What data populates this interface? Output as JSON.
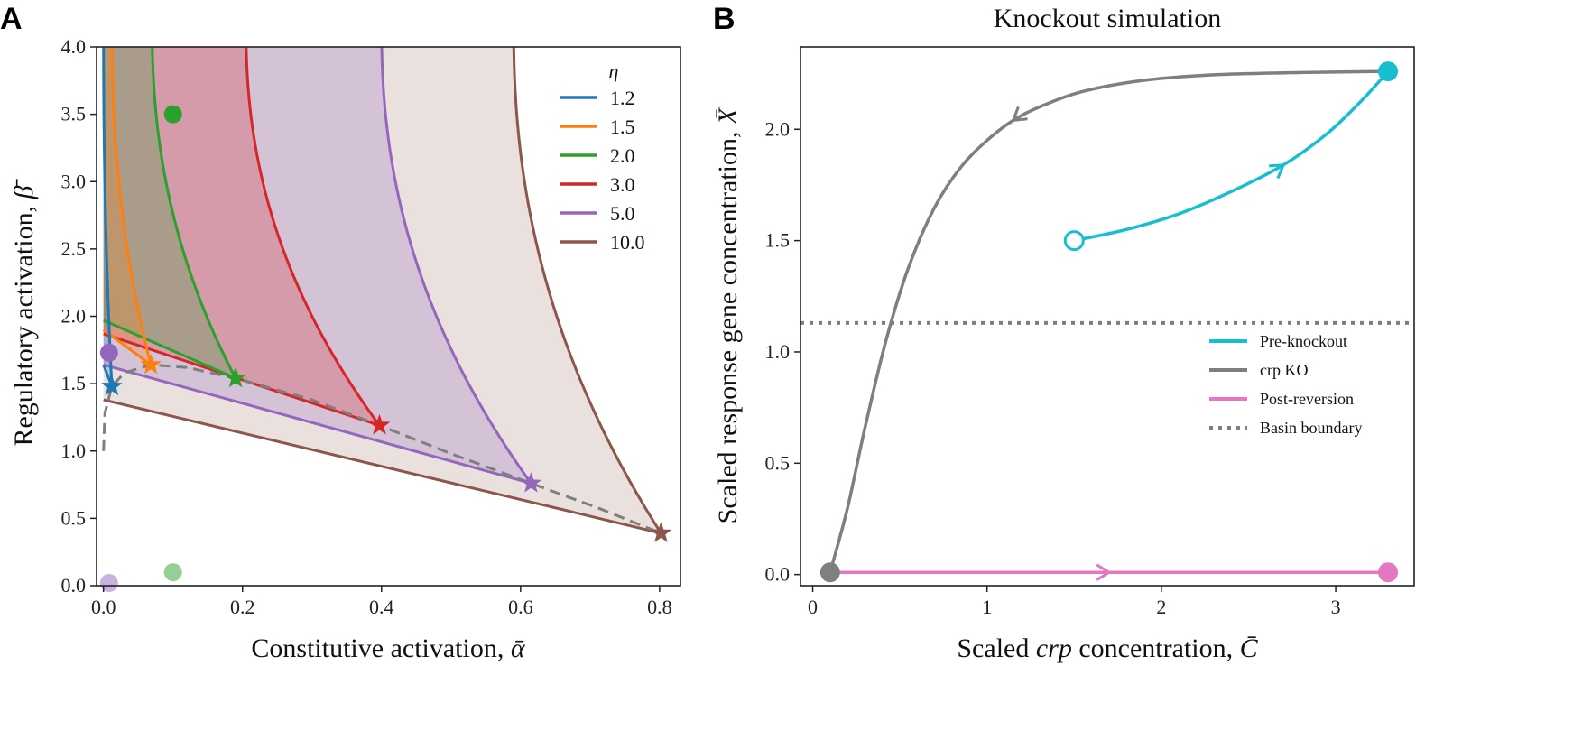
{
  "figure": {
    "panel_a_letter": "A",
    "panel_b_letter": "B"
  },
  "chart_data": [
    {
      "type": "line",
      "panel": "A",
      "title": "",
      "xlabel": "Constitutive activation, ",
      "xlabel_symbol": "ᾱ",
      "ylabel": "Regulatory activation, ",
      "ylabel_symbol": "β̄",
      "xlim": [
        -0.01,
        0.83
      ],
      "ylim": [
        0.0,
        4.0
      ],
      "xticks": [
        0.0,
        0.2,
        0.4,
        0.6,
        0.8
      ],
      "xtick_labels": [
        "0.0",
        "0.2",
        "0.4",
        "0.6",
        "0.8"
      ],
      "yticks": [
        0.0,
        0.5,
        1.0,
        1.5,
        2.0,
        2.5,
        3.0,
        3.5,
        4.0
      ],
      "ytick_labels": [
        "0.0",
        "0.5",
        "1.0",
        "1.5",
        "2.0",
        "2.5",
        "3.0",
        "3.5",
        "4.0"
      ],
      "legend_title": "η",
      "legend_position": "top-right",
      "series": [
        {
          "name": "1.2",
          "eta": 1.2,
          "color": "#1f77b4",
          "cusp": [
            0.012,
            1.48
          ],
          "lower_intercept": 1.64,
          "upper_top_x": 0.0,
          "fill_opacity": 0.25
        },
        {
          "name": "1.5",
          "eta": 1.5,
          "color": "#ff7f0e",
          "cusp": [
            0.068,
            1.64
          ],
          "lower_intercept": 1.9,
          "upper_top_x": 0.012,
          "fill_opacity": 0.25
        },
        {
          "name": "2.0",
          "eta": 2.0,
          "color": "#2ca02c",
          "cusp": [
            0.19,
            1.54
          ],
          "lower_intercept": 1.97,
          "upper_top_x": 0.07,
          "fill_opacity": 0.25
        },
        {
          "name": "3.0",
          "eta": 3.0,
          "color": "#d62728",
          "cusp": [
            0.397,
            1.19
          ],
          "lower_intercept": 1.87,
          "upper_top_x": 0.205,
          "fill_opacity": 0.25
        },
        {
          "name": "5.0",
          "eta": 5.0,
          "color": "#9467bd",
          "cusp": [
            0.615,
            0.76
          ],
          "lower_intercept": 1.64,
          "upper_top_x": 0.4,
          "fill_opacity": 0.25
        },
        {
          "name": "10.0",
          "eta": 10.0,
          "color": "#8c564b",
          "cusp": [
            0.802,
            0.39
          ],
          "lower_intercept": 1.38,
          "upper_top_x": 0.59,
          "fill_opacity": 0.18
        }
      ],
      "cusp_locus": {
        "style": "dashed",
        "color": "#7f7f7f",
        "points": [
          [
            0.0,
            1.0
          ],
          [
            0.002,
            1.28
          ],
          [
            0.012,
            1.48
          ],
          [
            0.03,
            1.58
          ],
          [
            0.068,
            1.64
          ],
          [
            0.12,
            1.62
          ],
          [
            0.19,
            1.54
          ],
          [
            0.3,
            1.38
          ],
          [
            0.397,
            1.19
          ],
          [
            0.5,
            0.98
          ],
          [
            0.615,
            0.76
          ],
          [
            0.71,
            0.58
          ],
          [
            0.802,
            0.39
          ]
        ]
      },
      "markers": [
        {
          "x": 0.1,
          "y": 3.5,
          "color": "#2ca02c",
          "alpha": 1.0
        },
        {
          "x": 0.008,
          "y": 1.73,
          "color": "#9467bd",
          "alpha": 1.0
        },
        {
          "x": 0.1,
          "y": 0.1,
          "color": "#2ca02c",
          "alpha": 0.5
        },
        {
          "x": 0.008,
          "y": 0.02,
          "color": "#9467bd",
          "alpha": 0.5
        }
      ]
    },
    {
      "type": "line",
      "panel": "B",
      "title": "Knockout simulation",
      "xlabel": "Scaled ",
      "xlabel_italic": "crp",
      "xlabel_suffix": " concentration, ",
      "xlabel_symbol": "C̄",
      "ylabel": "Scaled response gene concentration, ",
      "ylabel_symbol": "X̄",
      "xlim": [
        -0.07,
        3.45
      ],
      "ylim": [
        -0.05,
        2.37
      ],
      "xticks": [
        0,
        1,
        2,
        3
      ],
      "xtick_labels": [
        "0",
        "1",
        "2",
        "3"
      ],
      "yticks": [
        0.0,
        0.5,
        1.0,
        1.5,
        2.0
      ],
      "ytick_labels": [
        "0.0",
        "0.5",
        "1.0",
        "1.5",
        "2.0"
      ],
      "legend_position": "center-right",
      "series": [
        {
          "name": "Pre-knockout",
          "color": "#17becf",
          "style": "solid",
          "x": [
            1.5,
            1.8,
            2.1,
            2.4,
            2.7,
            2.95,
            3.15,
            3.3
          ],
          "y": [
            1.5,
            1.55,
            1.62,
            1.72,
            1.84,
            1.98,
            2.13,
            2.26
          ],
          "start_marker": "open-circle",
          "end_marker": "filled-circle",
          "arrow_at_index": 4
        },
        {
          "name": "crp KO",
          "color": "#7f7f7f",
          "style": "solid",
          "x": [
            3.3,
            2.8,
            2.3,
            1.9,
            1.55,
            1.3,
            1.15,
            1.0,
            0.85,
            0.7,
            0.55,
            0.42,
            0.3,
            0.2,
            0.1
          ],
          "y": [
            2.26,
            2.255,
            2.245,
            2.22,
            2.17,
            2.1,
            2.04,
            1.95,
            1.83,
            1.65,
            1.38,
            1.05,
            0.66,
            0.3,
            0.01
          ],
          "end_marker": "filled-circle",
          "arrow_at_index": 6
        },
        {
          "name": "Post-reversion",
          "color": "#e377c2",
          "style": "solid",
          "x": [
            0.1,
            1.7,
            3.3
          ],
          "y": [
            0.01,
            0.01,
            0.01
          ],
          "end_marker": "filled-circle",
          "arrow_at_index": 1
        },
        {
          "name": "Basin boundary",
          "color": "#7f7f7f",
          "style": "dotted",
          "x": [
            -0.07,
            3.45
          ],
          "y": [
            1.13,
            1.13
          ]
        }
      ]
    }
  ]
}
